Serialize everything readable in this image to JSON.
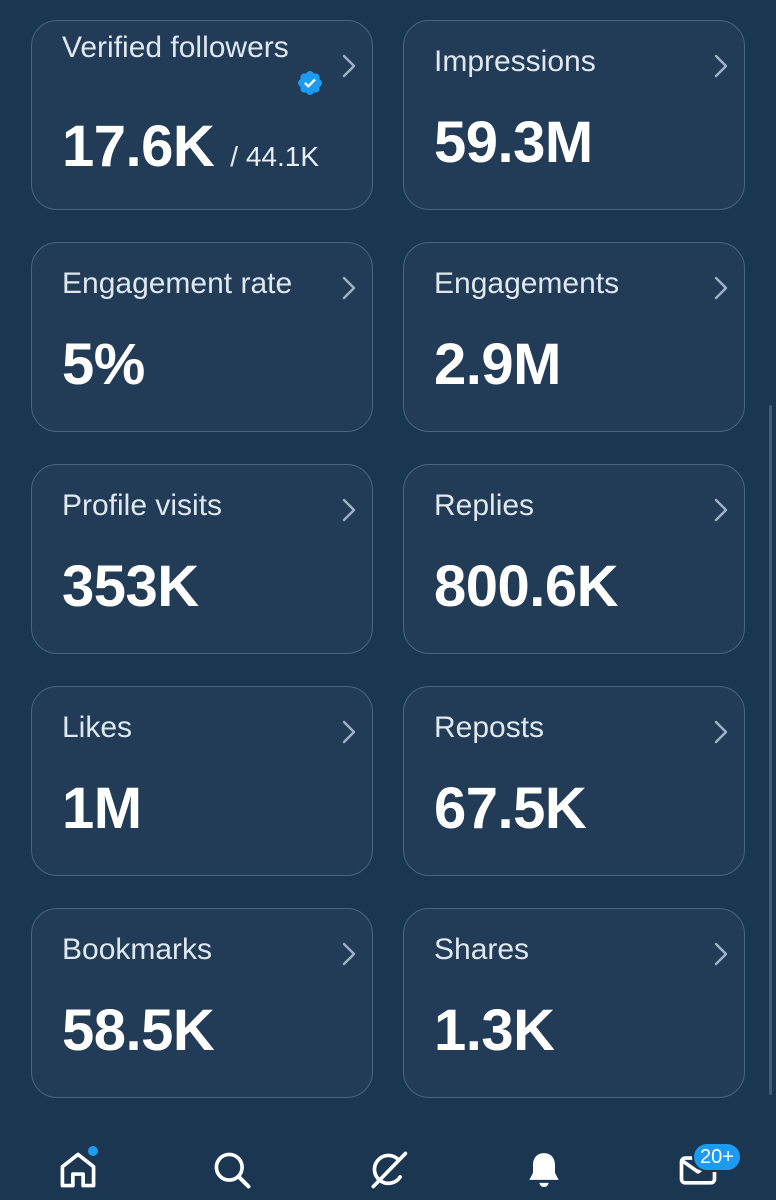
{
  "cards": [
    {
      "label": "Verified followers",
      "value": "17.6K",
      "sub": "/ 44.1K",
      "verified_color": "#1d9bf0"
    },
    {
      "label": "Impressions",
      "value": "59.3M"
    },
    {
      "label": "Engagement rate",
      "value": "5%"
    },
    {
      "label": "Engagements",
      "value": "2.9M"
    },
    {
      "label": "Profile visits",
      "value": "353K"
    },
    {
      "label": "Replies",
      "value": "800.6K"
    },
    {
      "label": "Likes",
      "value": "1M"
    },
    {
      "label": "Reposts",
      "value": "67.5K"
    },
    {
      "label": "Bookmarks",
      "value": "58.5K"
    },
    {
      "label": "Shares",
      "value": "1.3K"
    }
  ],
  "tabbar": {
    "items": [
      {
        "icon": "home-icon",
        "has_dot": true
      },
      {
        "icon": "search-icon"
      },
      {
        "icon": "grok-icon"
      },
      {
        "icon": "bell-icon"
      },
      {
        "icon": "mail-icon"
      }
    ],
    "messages_badge": "20+"
  },
  "colors": {
    "background": "#1b3651",
    "card": "#223c57",
    "card_border": "#4a6580",
    "accent": "#1d9bf0"
  }
}
